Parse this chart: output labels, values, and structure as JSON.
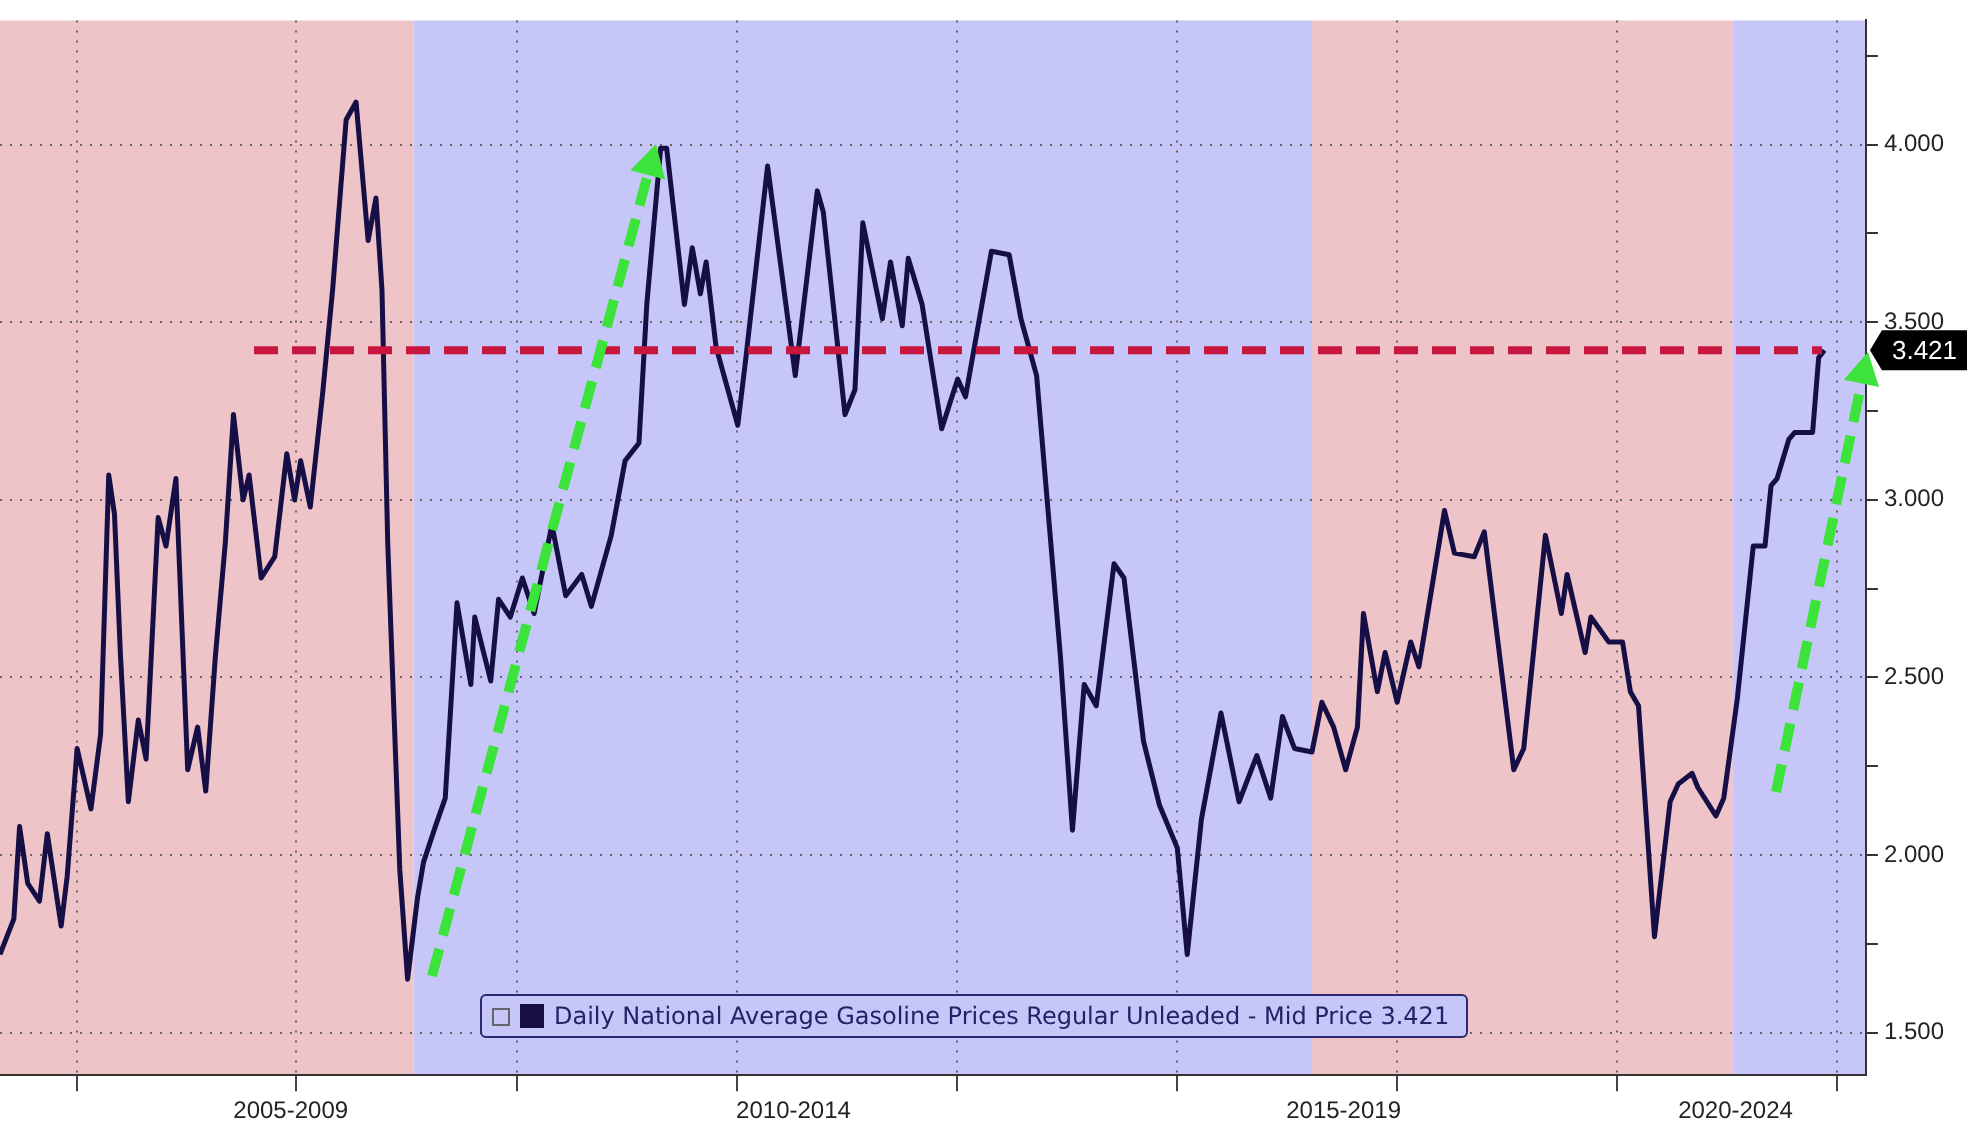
{
  "chart_data": {
    "type": "line",
    "x": [
      "2005-04-22",
      "2005-06-07",
      "2005-06-26",
      "2005-07-23",
      "2005-08-31",
      "2005-09-26",
      "2005-11-11",
      "2005-12-01",
      "2006-01-03",
      "2006-02-18",
      "2006-03-22",
      "2006-04-18",
      "2006-05-07",
      "2006-05-27",
      "2006-06-22",
      "2006-07-25",
      "2006-08-20",
      "2006-09-29",
      "2006-10-25",
      "2006-11-27",
      "2007-01-05",
      "2007-02-07",
      "2007-03-06",
      "2007-04-07",
      "2007-05-10",
      "2007-06-06",
      "2007-07-08",
      "2007-07-28",
      "2007-09-06",
      "2007-10-21",
      "2007-11-30",
      "2007-12-26",
      "2008-01-15",
      "2008-02-16",
      "2008-03-28",
      "2008-04-30",
      "2008-06-14",
      "2008-07-17",
      "2008-08-26",
      "2008-09-21",
      "2008-10-11",
      "2008-10-30",
      "2008-12-09",
      "2009-01-04",
      "2009-02-06",
      "2009-02-26",
      "2009-04-06",
      "2009-05-09",
      "2009-06-17",
      "2009-08-02",
      "2009-08-15",
      "2009-10-07",
      "2009-11-02",
      "2009-12-11",
      "2010-01-20",
      "2010-02-28",
      "2010-04-28",
      "2010-06-13",
      "2010-08-05",
      "2010-09-06",
      "2010-11-11",
      "2010-12-27",
      "2011-02-11",
      "2011-03-09",
      "2011-04-24",
      "2011-05-14",
      "2011-07-12",
      "2011-08-07",
      "2011-09-03",
      "2011-09-22",
      "2011-10-25",
      "2012-01-05",
      "2012-02-01",
      "2012-04-13",
      "2012-07-14",
      "2012-09-25",
      "2012-10-15",
      "2012-12-26",
      "2013-01-28",
      "2013-02-23",
      "2013-04-29",
      "2013-05-26",
      "2013-07-04",
      "2013-07-24",
      "2013-09-08",
      "2013-11-12",
      "2014-01-04",
      "2014-01-30",
      "2014-04-26",
      "2014-06-24",
      "2014-08-02",
      "2014-09-23",
      "2014-12-11",
      "2015-01-20",
      "2015-02-28",
      "2015-04-09",
      "2015-06-07",
      "2015-07-10",
      "2015-09-13",
      "2015-11-05",
      "2016-01-03",
      "2016-02-05",
      "2016-03-23",
      "2016-05-27",
      "2016-07-26",
      "2016-09-23",
      "2016-11-08",
      "2016-12-17",
      "2017-01-26",
      "2017-03-25",
      "2017-04-27",
      "2017-06-05",
      "2017-07-15",
      "2017-08-23",
      "2017-09-12",
      "2017-10-28",
      "2017-11-23",
      "2018-01-02",
      "2018-02-16",
      "2018-03-15",
      "2018-06-08",
      "2018-07-11",
      "2018-09-15",
      "2018-10-18",
      "2019-01-24",
      "2019-02-26",
      "2019-05-09",
      "2019-07-01",
      "2019-07-20",
      "2019-09-18",
      "2019-10-07",
      "2019-12-05",
      "2020-01-20",
      "2020-02-15",
      "2020-03-13",
      "2020-05-05",
      "2020-06-26",
      "2020-07-23",
      "2020-09-07",
      "2020-09-26",
      "2020-11-25",
      "2020-12-21",
      "2021-02-04",
      "2021-03-29",
      "2021-05-07",
      "2021-05-27",
      "2021-06-16",
      "2021-07-25",
      "2021-08-14",
      "2021-10-12",
      "2021-11-01",
      "2021-11-20"
    ],
    "series": [
      {
        "name": "Daily National Average Gasoline Prices Regular Unleaded - Mid Price 3.421",
        "color": "#160f45",
        "values": [
          1.72,
          1.82,
          2.08,
          1.92,
          1.87,
          2.06,
          1.8,
          1.94,
          2.3,
          2.13,
          2.34,
          3.07,
          2.96,
          2.56,
          2.15,
          2.38,
          2.27,
          2.95,
          2.87,
          3.06,
          2.24,
          2.36,
          2.18,
          2.56,
          2.88,
          3.24,
          3.0,
          3.07,
          2.78,
          2.84,
          3.13,
          3.0,
          3.11,
          2.98,
          3.3,
          3.59,
          4.07,
          4.12,
          3.73,
          3.85,
          3.59,
          2.88,
          1.96,
          1.65,
          1.88,
          1.98,
          2.08,
          2.16,
          2.71,
          2.48,
          2.67,
          2.49,
          2.72,
          2.67,
          2.78,
          2.68,
          2.93,
          2.73,
          2.79,
          2.7,
          2.9,
          3.11,
          3.16,
          3.55,
          3.99,
          3.99,
          3.55,
          3.71,
          3.58,
          3.67,
          3.43,
          3.21,
          3.4,
          3.94,
          3.35,
          3.87,
          3.81,
          3.24,
          3.31,
          3.78,
          3.51,
          3.67,
          3.49,
          3.68,
          3.55,
          3.2,
          3.34,
          3.29,
          3.7,
          3.69,
          3.51,
          3.35,
          2.56,
          2.07,
          2.48,
          2.42,
          2.82,
          2.78,
          2.32,
          2.14,
          2.02,
          1.72,
          2.1,
          2.4,
          2.15,
          2.28,
          2.16,
          2.39,
          2.3,
          2.29,
          2.43,
          2.36,
          2.24,
          2.36,
          2.68,
          2.46,
          2.57,
          2.43,
          2.6,
          2.53,
          2.97,
          2.85,
          2.84,
          2.91,
          2.24,
          2.3,
          2.9,
          2.68,
          2.79,
          2.57,
          2.67,
          2.6,
          2.6,
          2.46,
          2.42,
          1.77,
          2.15,
          2.2,
          2.23,
          2.19,
          2.11,
          2.16,
          2.44,
          2.87,
          2.87,
          3.04,
          3.06,
          3.17,
          3.19,
          3.19,
          3.4,
          3.421
        ]
      }
    ],
    "xlim": [
      "2005-04-22",
      "2022-04-07"
    ],
    "xticks": [
      {
        "value": "2006",
        "label": null
      },
      {
        "value": "2007-12-13",
        "label": "2005-2009"
      },
      {
        "value": "2008",
        "label": null
      },
      {
        "value": "2010",
        "label": null
      },
      {
        "value": "2012",
        "label": null
      },
      {
        "value": "2012-07-08",
        "label": "2010-2014"
      },
      {
        "value": "2014",
        "label": null
      },
      {
        "value": "2016",
        "label": null
      },
      {
        "value": "2017-07-08",
        "label": "2015-2019"
      },
      {
        "value": "2018",
        "label": null
      },
      {
        "value": "2020",
        "label": null
      },
      {
        "value": "2021-01-29",
        "label": "2020-2024"
      },
      {
        "value": "2022",
        "label": null
      }
    ],
    "ylim": [
      1.38,
      4.35
    ],
    "yticks": [
      {
        "value": 1.5,
        "label": "1.500"
      },
      {
        "value": 1.75,
        "label": null
      },
      {
        "value": 2,
        "label": "2.000"
      },
      {
        "value": 2.25,
        "label": null
      },
      {
        "value": 2.5,
        "label": "2.500"
      },
      {
        "value": 2.75,
        "label": null
      },
      {
        "value": 3,
        "label": "3.000"
      },
      {
        "value": 3.25,
        "label": null
      },
      {
        "value": 3.5,
        "label": "3.500"
      },
      {
        "value": 3.75,
        "label": null
      },
      {
        "value": 4,
        "label": "4.000"
      },
      {
        "value": 4.25,
        "label": null
      }
    ],
    "bands": [
      {
        "axis": "x",
        "from": "2005-04-22",
        "to": "2009-01-24",
        "color": "#eec4c9"
      },
      {
        "axis": "x",
        "from": "2009-01-24",
        "to": "2017-03-25",
        "color": "#c6c6f9"
      },
      {
        "axis": "x",
        "from": "2017-03-25",
        "to": "2021-01-20",
        "color": "#eec4c9"
      },
      {
        "axis": "x",
        "from": "2021-01-20",
        "to": "2022-04-07",
        "color": "#c6c6f9"
      }
    ],
    "ref_lines": [
      {
        "axis": "y",
        "value": 3.421,
        "label": "3.421",
        "color": "#c8163e",
        "line_style": "dashed"
      }
    ],
    "grid": true,
    "legend": "bottom"
  }
}
